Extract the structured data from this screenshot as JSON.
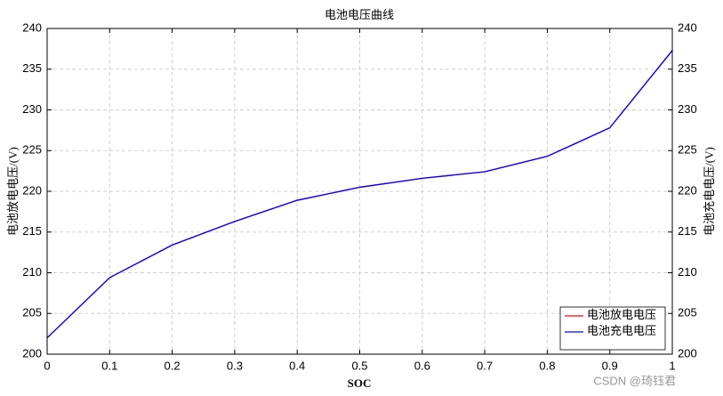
{
  "chart_data": {
    "type": "line",
    "title": "电池电压曲线",
    "x_label": "SOC",
    "y_label": "电池放电电压/(V)",
    "y2_label": "电池充电电压/(V)",
    "x": [
      0,
      0.1,
      0.2,
      0.3,
      0.4,
      0.5,
      0.6,
      0.7,
      0.8,
      0.9,
      1
    ],
    "series": [
      {
        "name": "电池放电电压",
        "color": "#ff0000",
        "values": [
          202,
          209.4,
          213.4,
          216.3,
          218.9,
          220.5,
          221.6,
          222.4,
          224.3,
          227.8,
          237.3
        ]
      },
      {
        "name": "电池充电电压",
        "color": "#0000ff",
        "axis": "y2",
        "values": [
          202,
          209.4,
          213.4,
          216.3,
          218.9,
          220.5,
          221.6,
          222.4,
          224.3,
          227.8,
          237.3
        ]
      }
    ],
    "xlim": [
      0,
      1
    ],
    "xticks": [
      0,
      0.1,
      0.2,
      0.3,
      0.4,
      0.5,
      0.6,
      0.7,
      0.8,
      0.9,
      1
    ],
    "ylim": [
      200,
      240
    ],
    "yticks": [
      200,
      205,
      210,
      215,
      220,
      225,
      230,
      235,
      240
    ],
    "y2lim": [
      200,
      240
    ],
    "y2ticks": [
      200,
      205,
      210,
      215,
      220,
      225,
      230,
      235,
      240
    ],
    "grid": true,
    "legend": "lower right",
    "watermark": "CSDN @琦钰君"
  }
}
